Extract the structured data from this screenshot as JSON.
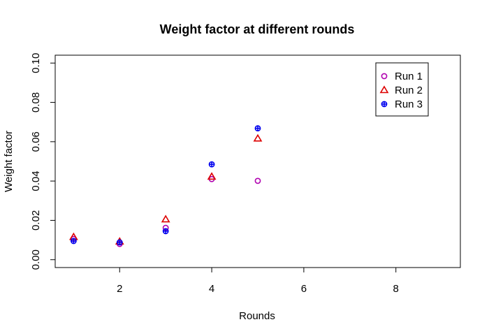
{
  "chart_data": {
    "type": "scatter",
    "title": "Weight factor at different rounds",
    "xlabel": "Rounds",
    "ylabel": "Weight factor",
    "xlim": [
      0.6,
      9.4
    ],
    "ylim": [
      -0.004,
      0.104
    ],
    "x_ticks": [
      2,
      4,
      6,
      8
    ],
    "y_ticks": [
      0.0,
      0.02,
      0.04,
      0.06,
      0.08,
      0.1
    ],
    "y_tick_labels": [
      "0.00",
      "0.02",
      "0.04",
      "0.06",
      "0.08",
      "0.10"
    ],
    "legend_position": "top-right",
    "grid": false,
    "series": [
      {
        "name": "Run 1",
        "color": "#b000b0",
        "marker": "circle",
        "x": [
          1,
          2,
          3,
          4,
          5
        ],
        "y": [
          0.0105,
          0.008,
          0.0162,
          0.041,
          0.0401
        ]
      },
      {
        "name": "Run 2",
        "color": "#dd0000",
        "marker": "triangle",
        "x": [
          1,
          2,
          3,
          4,
          5
        ],
        "y": [
          0.0115,
          0.0092,
          0.0205,
          0.0422,
          0.0616
        ]
      },
      {
        "name": "Run 3",
        "color": "#0000ee",
        "marker": "circle-plus",
        "x": [
          1,
          2,
          3,
          4,
          5
        ],
        "y": [
          0.0095,
          0.0088,
          0.0145,
          0.0485,
          0.0668
        ]
      }
    ]
  }
}
